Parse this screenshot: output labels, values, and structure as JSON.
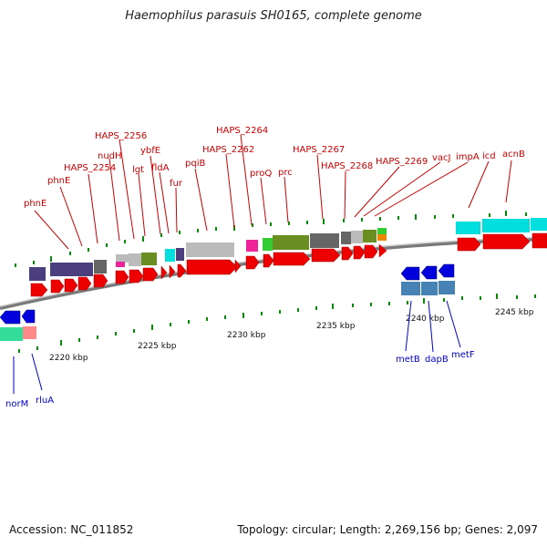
{
  "title": "Haemophilus parasuis SH0165, complete genome",
  "footer": {
    "accession": "Accession: NC_011852",
    "summary": "Topology: circular; Length: 2,269,156 bp; Genes: 2,097"
  },
  "colors": {
    "forward_label": "#cc0000",
    "reverse_label": "#0000cc",
    "cds_forward": "#ff0000",
    "cds_reverse": "#0000dd",
    "tick": "#008800",
    "backbone": "#888888"
  },
  "scale_labels": [
    {
      "label": "2220 kbp",
      "kbp": 2220
    },
    {
      "label": "2225 kbp",
      "kbp": 2225
    },
    {
      "label": "2230 kbp",
      "kbp": 2230
    },
    {
      "label": "2235 kbp",
      "kbp": 2235
    },
    {
      "label": "2240 kbp",
      "kbp": 2240
    },
    {
      "label": "2245 kbp",
      "kbp": 2245
    }
  ],
  "forward_genes": [
    {
      "name": "phnE"
    },
    {
      "name": "phnE"
    },
    {
      "name": "HAPS_2254"
    },
    {
      "name": "HAPS_2256"
    },
    {
      "name": "nudH"
    },
    {
      "name": "lgt"
    },
    {
      "name": "ybfE"
    },
    {
      "name": "fldA"
    },
    {
      "name": "fur"
    },
    {
      "name": "pqiB"
    },
    {
      "name": "HAPS_2262"
    },
    {
      "name": "HAPS_2264"
    },
    {
      "name": "proQ"
    },
    {
      "name": "prc"
    },
    {
      "name": "HAPS_2267"
    },
    {
      "name": "HAPS_2268"
    },
    {
      "name": "HAPS_2269"
    },
    {
      "name": "vacJ"
    },
    {
      "name": "impA"
    },
    {
      "name": "icd"
    },
    {
      "name": "acnB"
    }
  ],
  "reverse_genes": [
    {
      "name": "norM"
    },
    {
      "name": "rluA"
    },
    {
      "name": "metB"
    },
    {
      "name": "dapB"
    },
    {
      "name": "metF"
    }
  ]
}
